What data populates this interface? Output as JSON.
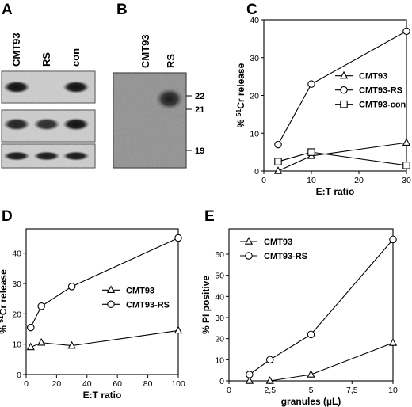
{
  "panels": {
    "A": {
      "letter": "A",
      "lanes": [
        "CMT93",
        "RS",
        "con"
      ],
      "blots": [
        {
          "intensity": [
            1.0,
            0.05,
            1.0
          ]
        },
        {
          "intensity": [
            0.9,
            0.85,
            1.0
          ]
        },
        {
          "intensity": [
            0.95,
            0.95,
            0.95
          ]
        }
      ]
    },
    "B": {
      "letter": "B",
      "lanes": [
        "CMT93",
        "RS"
      ],
      "size_markers": [
        "22",
        "21",
        "19"
      ]
    }
  },
  "chart_data": [
    {
      "panel": "C",
      "type": "line",
      "xlabel": "E:T ratio",
      "ylabel": "% 51Cr release",
      "ylabel_main": "% ",
      "ylabel_sup": "51",
      "ylabel_rest": "Cr release",
      "xlim": [
        0,
        30
      ],
      "ylim": [
        0,
        40
      ],
      "xticks": [
        "0",
        "10",
        "20",
        "30"
      ],
      "yticks": [
        "0",
        "10",
        "20",
        "30",
        "40"
      ],
      "legend": "right",
      "series": [
        {
          "name": "CMT93",
          "marker": "triangle",
          "x": [
            3,
            10,
            30
          ],
          "y": [
            0,
            4,
            7.5
          ]
        },
        {
          "name": "CMT93-RS",
          "marker": "circle",
          "x": [
            3,
            10,
            30
          ],
          "y": [
            7,
            23,
            37
          ]
        },
        {
          "name": "CMT93-con",
          "marker": "square",
          "x": [
            3,
            10,
            30
          ],
          "y": [
            2.5,
            5,
            1.5
          ]
        }
      ]
    },
    {
      "panel": "D",
      "type": "line",
      "xlabel": "E:T ratio",
      "ylabel": "% 51Cr release",
      "ylabel_main": "% ",
      "ylabel_sup": "51",
      "ylabel_rest": "Cr release",
      "xlim": [
        0,
        100
      ],
      "ylim": [
        0,
        48
      ],
      "xticks": [
        "0",
        "20",
        "40",
        "60",
        "80",
        "100"
      ],
      "yticks": [
        "0",
        "10",
        "20",
        "30",
        "40"
      ],
      "legend": "right",
      "series": [
        {
          "name": "CMT93",
          "marker": "triangle",
          "x": [
            3,
            10,
            30,
            100
          ],
          "y": [
            9,
            10.5,
            9.5,
            14.5
          ]
        },
        {
          "name": "CMT93-RS",
          "marker": "circle",
          "x": [
            3,
            10,
            30,
            100
          ],
          "y": [
            15.5,
            22.5,
            29,
            45
          ]
        }
      ]
    },
    {
      "panel": "E",
      "type": "line",
      "xlabel": "granules (µL)",
      "ylabel": "% PI positive",
      "xlim": [
        0,
        10
      ],
      "ylim": [
        0,
        72
      ],
      "xticks": [
        "0",
        "2,5",
        "5",
        "7,5",
        "10"
      ],
      "yticks": [
        "0",
        "10",
        "20",
        "30",
        "40",
        "50",
        "60"
      ],
      "legend": "top-left",
      "series": [
        {
          "name": "CMT93",
          "marker": "triangle",
          "x": [
            1.25,
            2.5,
            5,
            10
          ],
          "y": [
            0,
            0,
            3,
            18
          ]
        },
        {
          "name": "CMT93-RS",
          "marker": "circle",
          "x": [
            1.25,
            2.5,
            5,
            10
          ],
          "y": [
            3,
            10,
            22,
            67
          ]
        }
      ]
    }
  ],
  "panel_letters": {
    "C": "C",
    "D": "D",
    "E": "E"
  }
}
